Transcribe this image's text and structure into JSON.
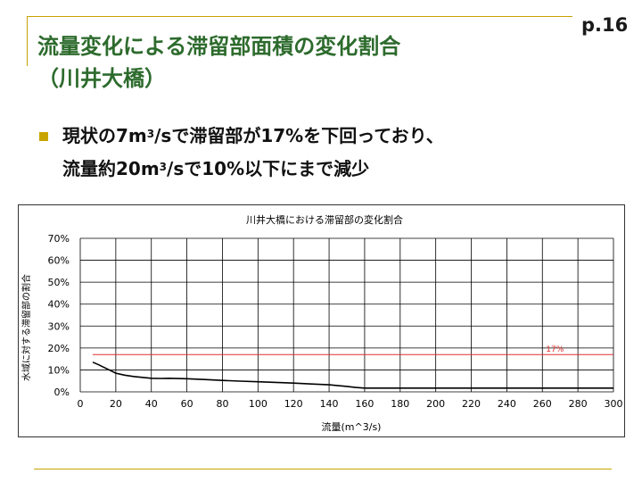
{
  "page_number": "p.16",
  "title_lines": [
    "流量変化による滞留部面積の変化割合",
    "（川井大橋）"
  ],
  "bullet": {
    "line1_pre": "現状の7m",
    "line1_sup": "3",
    "line1_post": "/sで滞留部が17%を下回っており、",
    "line2_pre": "流量約20m",
    "line2_sup": "3",
    "line2_post": "/sで10%以下にまで減少"
  },
  "colors": {
    "title": "#2d6b2d",
    "accent": "#c8a400",
    "reference_line": "#e03030",
    "series": "#000000"
  },
  "chart_data": {
    "type": "line",
    "title": "川井大橋における滞留部の変化割合",
    "xlabel": "流量(m^3/s)",
    "ylabel": "水域に対する滞留部の割合",
    "xlim": [
      0,
      300
    ],
    "ylim": [
      0,
      0.7
    ],
    "x_ticks": [
      "0",
      "20",
      "40",
      "60",
      "80",
      "100",
      "120",
      "140",
      "160",
      "180",
      "200",
      "220",
      "240",
      "260",
      "280",
      "300"
    ],
    "y_ticks": [
      "0%",
      "10%",
      "20%",
      "30%",
      "40%",
      "50%",
      "60%",
      "70%"
    ],
    "grid": true,
    "series": [
      {
        "x": [
          7,
          10,
          15,
          20,
          25,
          30,
          35,
          40,
          45,
          50,
          60,
          70,
          80,
          90,
          100,
          110,
          120,
          130,
          140,
          150,
          155,
          160,
          200,
          250,
          300
        ],
        "y": [
          0.135,
          0.125,
          0.105,
          0.085,
          0.076,
          0.07,
          0.066,
          0.062,
          0.061,
          0.062,
          0.06,
          0.056,
          0.052,
          0.049,
          0.046,
          0.043,
          0.04,
          0.036,
          0.032,
          0.025,
          0.02,
          0.017,
          0.017,
          0.017,
          0.017
        ]
      }
    ],
    "reference_line": {
      "y": 0.17,
      "x_start": 7,
      "label": "17%"
    }
  }
}
